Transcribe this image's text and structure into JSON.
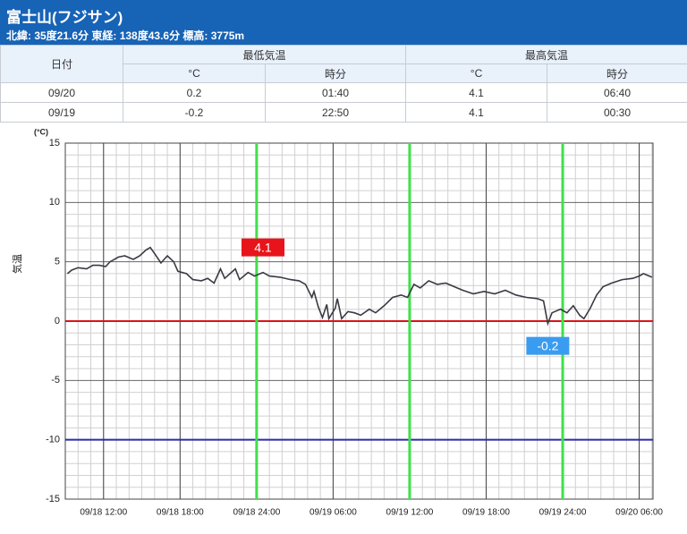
{
  "header": {
    "title": "富士山(フジサン)",
    "subtitle": "北緯: 35度21.6分 東経: 138度43.6分 標高: 3775m"
  },
  "table": {
    "date_header": "日付",
    "groups": [
      {
        "name": "最低気温",
        "columns": [
          "°C",
          "時分"
        ]
      },
      {
        "name": "最高気温",
        "columns": [
          "°C",
          "時分"
        ]
      }
    ],
    "rows": [
      [
        "09/20",
        "0.2",
        "01:40",
        "4.1",
        "06:40"
      ],
      [
        "09/19",
        "-0.2",
        "22:50",
        "4.1",
        "00:30"
      ]
    ]
  },
  "chart_data": {
    "type": "line",
    "y_label": "気温",
    "y_unit": "(°C)",
    "color": "#3a3a44",
    "x": [
      "09/18 09:10",
      "09/18 09:30",
      "09/18 10:00",
      "09/18 10:40",
      "09/18 11:10",
      "09/18 11:40",
      "09/18 12:10",
      "09/18 12:30",
      "09/18 13:10",
      "09/18 13:40",
      "09/18 14:20",
      "09/18 14:50",
      "09/18 15:20",
      "09/18 15:40",
      "09/18 16:00",
      "09/18 16:30",
      "09/18 17:00",
      "09/18 17:30",
      "09/18 17:50",
      "09/18 18:30",
      "09/18 19:00",
      "09/18 19:40",
      "09/18 20:10",
      "09/18 20:40",
      "09/18 21:10",
      "09/18 21:30",
      "09/18 22:20",
      "09/18 22:40",
      "09/18 23:20",
      "09/18 23:50",
      "09/19 00:30",
      "09/19 01:00",
      "09/19 01:50",
      "09/19 02:40",
      "09/19 03:20",
      "09/19 03:50",
      "09/19 04:20",
      "09/19 04:30",
      "09/19 04:50",
      "09/19 05:10",
      "09/19 05:30",
      "09/19 05:40",
      "09/19 06:10",
      "09/19 06:20",
      "09/19 06:40",
      "09/19 07:10",
      "09/19 07:40",
      "09/19 08:10",
      "09/19 08:50",
      "09/19 09:20",
      "09/19 10:00",
      "09/19 10:40",
      "09/19 11:20",
      "09/19 11:50",
      "09/19 12:20",
      "09/19 12:50",
      "09/19 13:30",
      "09/19 14:10",
      "09/19 14:50",
      "09/19 15:30",
      "09/19 16:10",
      "09/19 17:00",
      "09/19 17:50",
      "09/19 18:40",
      "09/19 19:30",
      "09/19 20:20",
      "09/19 21:10",
      "09/19 22:00",
      "09/19 22:30",
      "09/19 22:50",
      "09/19 23:10",
      "09/19 23:50",
      "09/20 00:20",
      "09/20 00:50",
      "09/20 01:20",
      "09/20 01:40",
      "09/20 02:10",
      "09/20 02:40",
      "09/20 03:10",
      "09/20 03:50",
      "09/20 04:40",
      "09/20 05:30",
      "09/20 06:00",
      "09/20 06:20",
      "09/20 07:00"
    ],
    "values": [
      4.0,
      4.3,
      4.5,
      4.4,
      4.7,
      4.7,
      4.6,
      5.0,
      5.4,
      5.5,
      5.2,
      5.5,
      6.0,
      6.2,
      5.7,
      4.9,
      5.5,
      5.0,
      4.2,
      4.0,
      3.5,
      3.4,
      3.6,
      3.2,
      4.4,
      3.6,
      4.4,
      3.5,
      4.1,
      3.8,
      4.1,
      3.8,
      3.7,
      3.5,
      3.4,
      3.1,
      2.0,
      2.5,
      1.2,
      0.3,
      1.4,
      0.2,
      1.1,
      1.9,
      0.2,
      0.8,
      0.7,
      0.5,
      1.0,
      0.7,
      1.3,
      2.0,
      2.2,
      2.0,
      3.1,
      2.8,
      3.4,
      3.1,
      3.2,
      2.9,
      2.6,
      2.3,
      2.5,
      2.3,
      2.6,
      2.2,
      2.0,
      1.9,
      1.7,
      -0.2,
      0.7,
      1.0,
      0.7,
      1.3,
      0.5,
      0.2,
      1.1,
      2.2,
      2.9,
      3.2,
      3.5,
      3.6,
      3.8,
      4.0,
      3.7
    ],
    "xlim": [
      "09/18 09:00",
      "09/20 07:05"
    ],
    "xticks": [
      "09/18 12:00",
      "09/18 18:00",
      "09/18 24:00",
      "09/19 06:00",
      "09/19 12:00",
      "09/19 18:00",
      "09/19 24:00",
      "09/20 06:00"
    ],
    "ylim": [
      -15,
      15
    ],
    "yticks": [
      -15,
      -10,
      -5,
      0,
      5,
      10,
      15
    ],
    "grid": true,
    "minor_grid": true,
    "reference_lines": [
      {
        "axis": "y",
        "value": 0,
        "color": "#d8141b"
      },
      {
        "axis": "y",
        "value": -10,
        "color": "#2b2ba8"
      },
      {
        "axis": "x",
        "value": "09/18 24:00",
        "color": "#3fe04a"
      },
      {
        "axis": "x",
        "value": "09/19 12:00",
        "color": "#3fe04a"
      },
      {
        "axis": "x",
        "value": "09/19 24:00",
        "color": "#3fe04a"
      }
    ],
    "annotations": [
      {
        "x": "09/19 00:30",
        "value": 4.1,
        "color": "#e8141b",
        "position": "above"
      },
      {
        "x": "09/19 22:50",
        "value": -0.2,
        "color": "#3a9cf0",
        "position": "below"
      }
    ]
  }
}
